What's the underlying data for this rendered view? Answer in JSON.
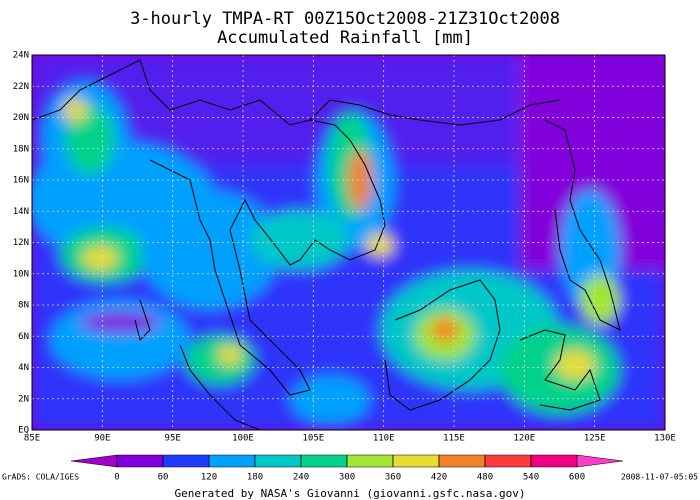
{
  "title": "3-hourly TMPA-RT 00Z15Oct2008-21Z31Oct2008",
  "subtitle": "Accumulated Rainfall [mm]",
  "lon_labels": [
    "85E",
    "90E",
    "95E",
    "100E",
    "105E",
    "110E",
    "115E",
    "120E",
    "125E",
    "130E"
  ],
  "lat_labels": [
    "EQ",
    "2N",
    "4N",
    "6N",
    "8N",
    "10N",
    "12N",
    "14N",
    "16N",
    "18N",
    "20N",
    "22N",
    "24N"
  ],
  "colorbar": {
    "ticks": [
      0,
      60,
      120,
      180,
      240,
      300,
      360,
      420,
      480,
      540,
      600
    ],
    "colors": [
      "#a000c8",
      "#8200dc",
      "#1e3cff",
      "#00a0ff",
      "#00c8c8",
      "#00d28c",
      "#a0e632",
      "#e6dc32",
      "#f08228",
      "#fa3c3c",
      "#f00082",
      "#ff3cc8"
    ]
  },
  "footer": {
    "left": "GrADS: COLA/IGES",
    "center": "Generated by NASA's Giovanni (giovanni.gsfc.nasa.gov)",
    "right": "2008-11-07-05:05"
  }
}
